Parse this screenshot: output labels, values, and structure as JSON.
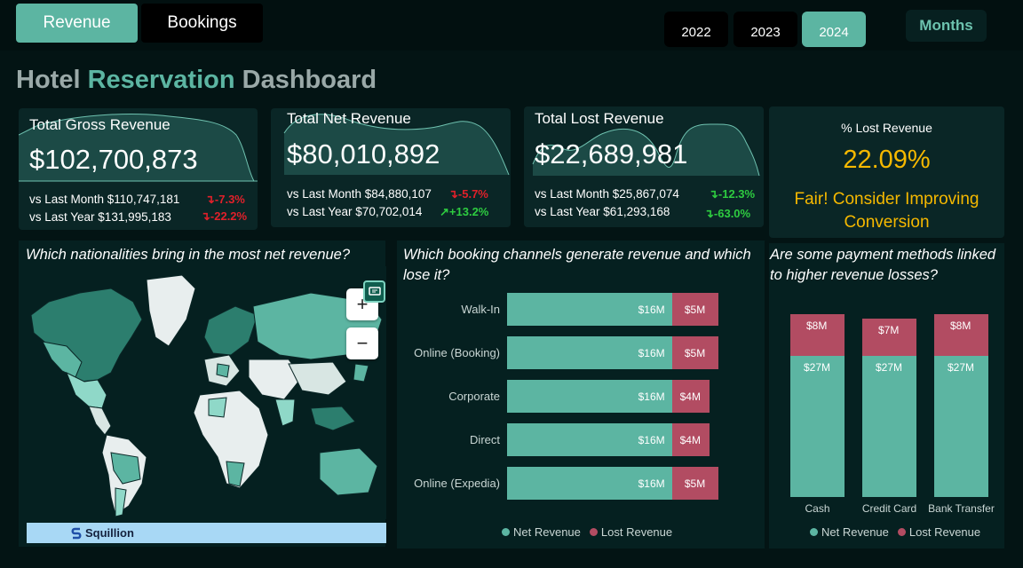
{
  "tabs": {
    "revenue": "Revenue",
    "bookings": "Bookings"
  },
  "years": [
    "2022",
    "2023",
    "2024"
  ],
  "selected_year": "2024",
  "months_label": "Months",
  "title": {
    "part1": "Hotel",
    "part2": "Reservation",
    "part3": "Dashboard"
  },
  "kpis": {
    "gross": {
      "title": "Total Gross Revenue",
      "value": "$102,700,873",
      "vs_month": "vs Last Month $110,747,181",
      "delta_month": "-7.3%",
      "vs_year": "vs Last Year $131,995,183",
      "delta_year": "-22.2%"
    },
    "net": {
      "title": "Total Net Revenue",
      "value": "$80,010,892",
      "vs_month": "vs Last Month $84,880,107",
      "delta_month": "-5.7%",
      "vs_year": "vs Last Year $70,702,014",
      "delta_year": "+13.2%"
    },
    "lost": {
      "title": "Total Lost Revenue",
      "value": "$22,689,981",
      "vs_month": "vs Last Month $25,867,074",
      "delta_month": "-12.3%",
      "vs_year": "vs Last Year $61,293,168",
      "delta_year": "-63.0%"
    }
  },
  "lost_pct": {
    "label": "% Lost Revenue",
    "value": "22.09%",
    "message": "Fair! Consider Improving Conversion"
  },
  "colors": {
    "accent": "#5cb5a2",
    "lost": "#b24c62",
    "warning": "#f5b800",
    "negative": "#e0202a",
    "positive": "#2ecc40"
  },
  "map_panel": {
    "title": "Which nationalities bring in the most net revenue?",
    "zoom_in": "+",
    "zoom_out": "−",
    "brand": "Squillion",
    "chat_icon": "chat-icon"
  },
  "legend": {
    "net": "Net Revenue",
    "lost": "Lost Revenue"
  },
  "chart_data": [
    {
      "type": "bar",
      "title": "Which booking channels generate revenue and which lose it?",
      "orientation": "horizontal",
      "stacked": true,
      "categories": [
        "Walk-In",
        "Online (Booking)",
        "Corporate",
        "Direct",
        "Online (Expedia)"
      ],
      "series": [
        {
          "name": "Net Revenue",
          "values": [
            16,
            16,
            16,
            16,
            16
          ],
          "labels": [
            "$16M",
            "$16M",
            "$16M",
            "$16M",
            "$16M"
          ]
        },
        {
          "name": "Lost Revenue",
          "values": [
            5,
            5,
            4,
            4,
            5
          ],
          "labels": [
            "$5M",
            "$5M",
            "$4M",
            "$4M",
            "$5M"
          ]
        }
      ],
      "legend_position": "bottom"
    },
    {
      "type": "bar",
      "title": "Are some payment methods linked to higher revenue losses?",
      "orientation": "vertical",
      "stacked": true,
      "categories": [
        "Cash",
        "Credit Card",
        "Bank Transfer"
      ],
      "series": [
        {
          "name": "Net Revenue",
          "values": [
            27,
            27,
            27
          ],
          "labels": [
            "$27M",
            "$27M",
            "$27M"
          ]
        },
        {
          "name": "Lost Revenue",
          "values": [
            8,
            7,
            8
          ],
          "labels": [
            "$8M",
            "$7M",
            "$8M"
          ]
        }
      ],
      "legend_position": "bottom"
    }
  ]
}
